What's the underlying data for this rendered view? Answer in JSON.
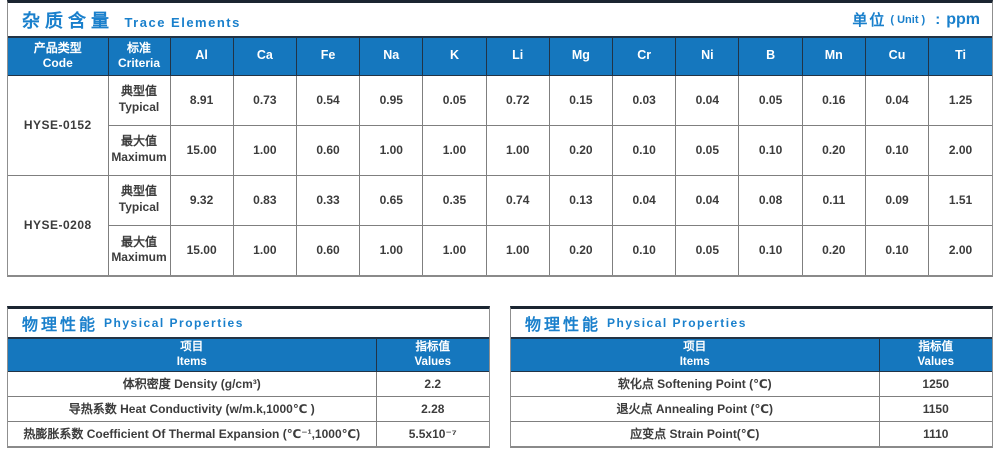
{
  "colors": {
    "accent_blue": "#1577BE",
    "title_blue": "#1A80CC",
    "dark_line": "#223345",
    "grid_line": "#7F7F7F",
    "text": "#3C3C3C"
  },
  "trace_table": {
    "title_zh": "杂质含量",
    "title_en": "Trace Elements",
    "unit_zh": "单位",
    "unit_en": "( Unit )",
    "unit_colon": ":",
    "unit_value": "ppm",
    "header": {
      "product_zh": "产品类型",
      "product_en": "Code",
      "criteria_zh": "标准",
      "criteria_en": "Criteria"
    },
    "elements": [
      "Al",
      "Ca",
      "Fe",
      "Na",
      "K",
      "Li",
      "Mg",
      "Cr",
      "Ni",
      "B",
      "Mn",
      "Cu",
      "Ti"
    ],
    "products": [
      {
        "code": "HYSE-0152",
        "rows": [
          {
            "label_zh": "典型值",
            "label_en": "Typical",
            "values": [
              "8.91",
              "0.73",
              "0.54",
              "0.95",
              "0.05",
              "0.72",
              "0.15",
              "0.03",
              "0.04",
              "0.05",
              "0.16",
              "0.04",
              "1.25"
            ]
          },
          {
            "label_zh": "最大值",
            "label_en": "Maximum",
            "values": [
              "15.00",
              "1.00",
              "0.60",
              "1.00",
              "1.00",
              "1.00",
              "0.20",
              "0.10",
              "0.05",
              "0.10",
              "0.20",
              "0.10",
              "2.00"
            ]
          }
        ]
      },
      {
        "code": "HYSE-0208",
        "rows": [
          {
            "label_zh": "典型值",
            "label_en": "Typical",
            "values": [
              "9.32",
              "0.83",
              "0.33",
              "0.65",
              "0.35",
              "0.74",
              "0.13",
              "0.04",
              "0.04",
              "0.08",
              "0.11",
              "0.09",
              "1.51"
            ]
          },
          {
            "label_zh": "最大值",
            "label_en": "Maximum",
            "values": [
              "15.00",
              "1.00",
              "0.60",
              "1.00",
              "1.00",
              "1.00",
              "0.20",
              "0.10",
              "0.05",
              "0.10",
              "0.20",
              "0.10",
              "2.00"
            ]
          }
        ]
      }
    ]
  },
  "physical_left": {
    "title_zh": "物理性能",
    "title_en": "Physical Properties",
    "header": {
      "items_zh": "项目",
      "items_en": "Items",
      "values_zh": "指标值",
      "values_en": "Values"
    },
    "rows": [
      {
        "item": "体积密度 Density (g/cm³)",
        "value": "2.2"
      },
      {
        "item": "导热系数 Heat Conductivity (w/m.k,1000℃ )",
        "value": "2.28"
      },
      {
        "item": "热膨胀系数 Coefficient Of Thermal Expansion (℃⁻¹,1000℃)",
        "value": "5.5x10⁻⁷"
      }
    ]
  },
  "physical_right": {
    "title_zh": "物理性能",
    "title_en": "Physical Properties",
    "header": {
      "items_zh": "项目",
      "items_en": "Items",
      "values_zh": "指标值",
      "values_en": "Values"
    },
    "rows": [
      {
        "item": "软化点 Softening Point (℃)",
        "value": "1250"
      },
      {
        "item": "退火点 Annealing Point (℃)",
        "value": "1150"
      },
      {
        "item": "应变点 Strain Point(℃)",
        "value": "1110"
      }
    ]
  }
}
